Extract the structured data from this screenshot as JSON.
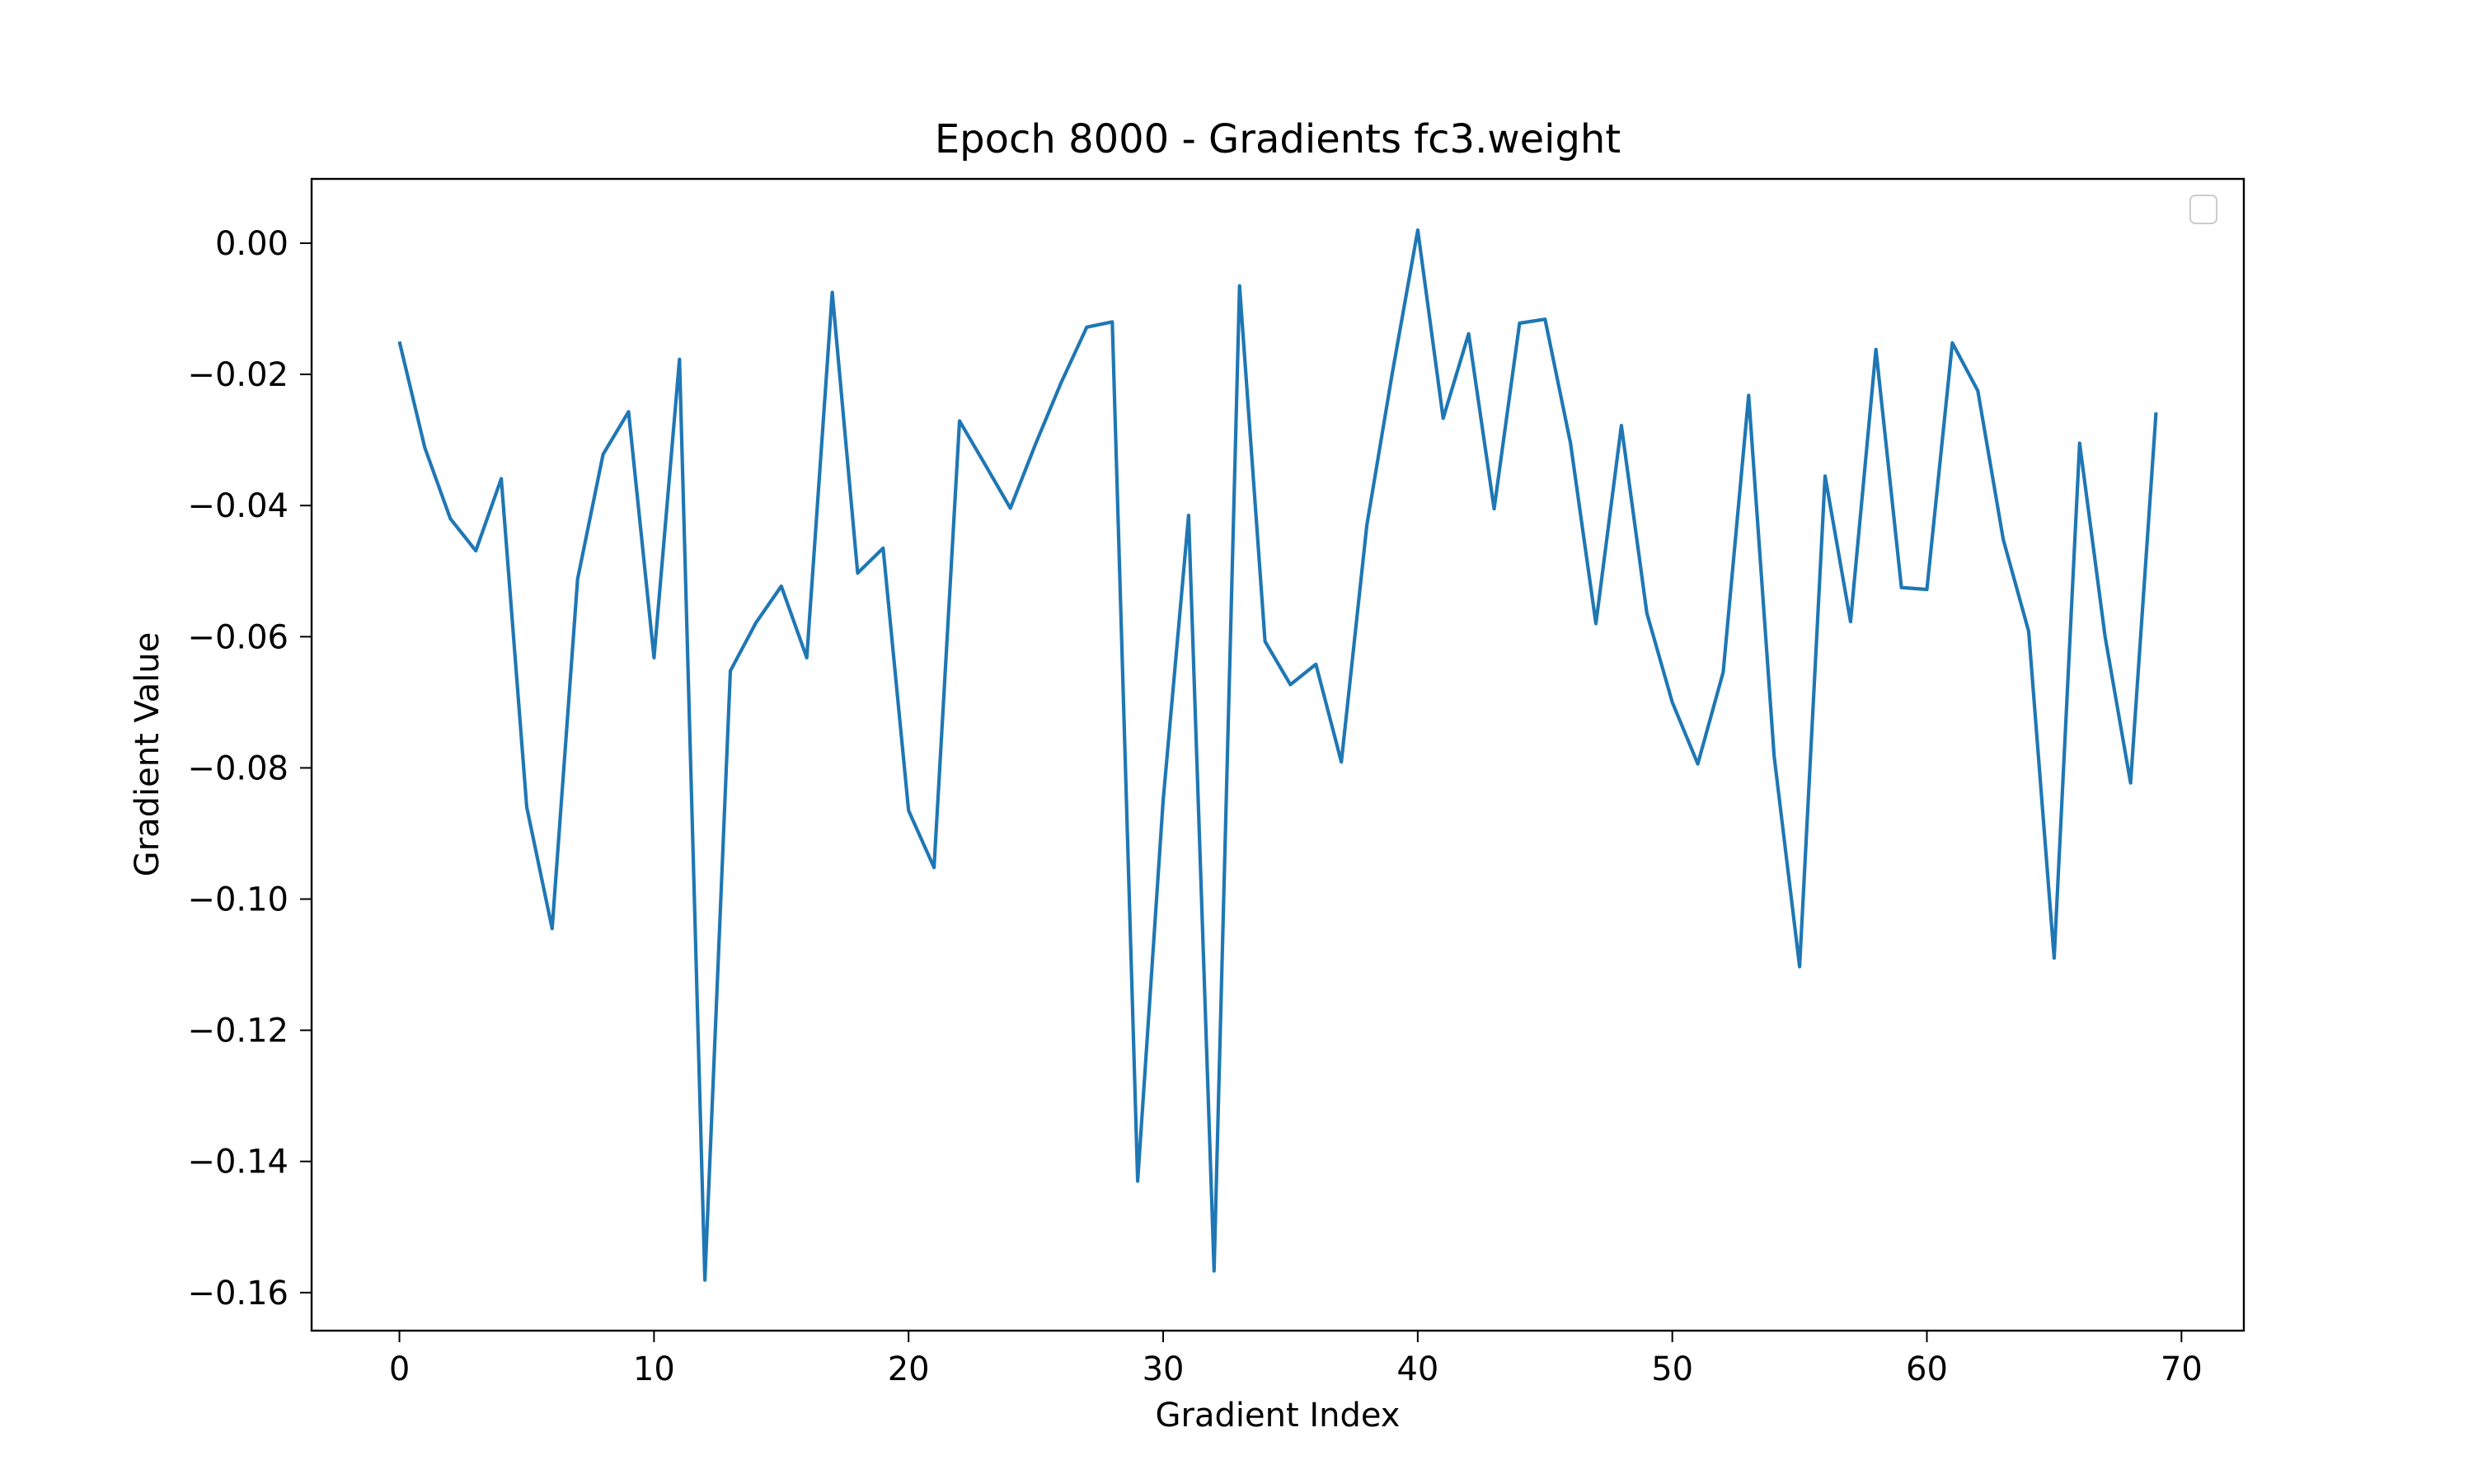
{
  "chart_data": {
    "type": "line",
    "title": "Epoch 8000 - Gradients fc3.weight",
    "xlabel": "Gradient Index",
    "ylabel": "Gradient Value",
    "xlim": [
      -3.45,
      72.45
    ],
    "ylim": [
      -0.1658,
      0.0098
    ],
    "xticks": [
      0,
      10,
      20,
      30,
      40,
      50,
      60,
      70
    ],
    "xtick_labels": [
      "0",
      "10",
      "20",
      "30",
      "40",
      "50",
      "60",
      "70"
    ],
    "yticks": [
      0.0,
      -0.02,
      -0.04,
      -0.06,
      -0.08,
      -0.1,
      -0.12,
      -0.14,
      -0.16
    ],
    "ytick_labels": [
      "0.00",
      "−0.02",
      "−0.04",
      "−0.06",
      "−0.08",
      "−0.10",
      "−0.12",
      "−0.14",
      "−0.16"
    ],
    "grid": false,
    "legend": {
      "placement": "top-right",
      "entries": []
    },
    "series": [
      {
        "color": "#1f77b4",
        "x": [
          0,
          1,
          2,
          3,
          4,
          5,
          6,
          7,
          8,
          9,
          10,
          11,
          12,
          13,
          14,
          15,
          16,
          17,
          18,
          19,
          20,
          21,
          22,
          23,
          24,
          25,
          26,
          27,
          28,
          29,
          30,
          31,
          32,
          33,
          34,
          35,
          36,
          37,
          38,
          39,
          40,
          41,
          42,
          43,
          44,
          45,
          46,
          47,
          48,
          49,
          50,
          51,
          52,
          53,
          54,
          55,
          56,
          57,
          58,
          59,
          60,
          61,
          62,
          63,
          64,
          65,
          66,
          67,
          68,
          69
        ],
        "values": [
          -0.015,
          -0.0312,
          -0.042,
          -0.0469,
          -0.0359,
          -0.086,
          -0.1045,
          -0.0512,
          -0.0322,
          -0.0257,
          -0.0632,
          -0.0177,
          -0.1581,
          -0.0652,
          -0.0579,
          -0.0523,
          -0.0632,
          -0.0075,
          -0.0503,
          -0.0465,
          -0.0865,
          -0.0952,
          -0.0271,
          -0.0337,
          -0.0404,
          -0.0305,
          -0.0212,
          -0.0128,
          -0.012,
          -0.143,
          -0.085,
          -0.0415,
          -0.1567,
          -0.0065,
          -0.0607,
          -0.0673,
          -0.0642,
          -0.0791,
          -0.043,
          -0.0198,
          0.002,
          -0.0267,
          -0.0138,
          -0.0405,
          -0.0122,
          -0.0116,
          -0.0305,
          -0.058,
          -0.0278,
          -0.0564,
          -0.07,
          -0.0794,
          -0.0654,
          -0.0232,
          -0.0782,
          -0.1103,
          -0.0355,
          -0.0577,
          -0.0162,
          -0.0525,
          -0.0528,
          -0.0152,
          -0.0225,
          -0.0452,
          -0.0592,
          -0.109,
          -0.0305,
          -0.06,
          -0.0823,
          -0.0258
        ]
      }
    ]
  }
}
